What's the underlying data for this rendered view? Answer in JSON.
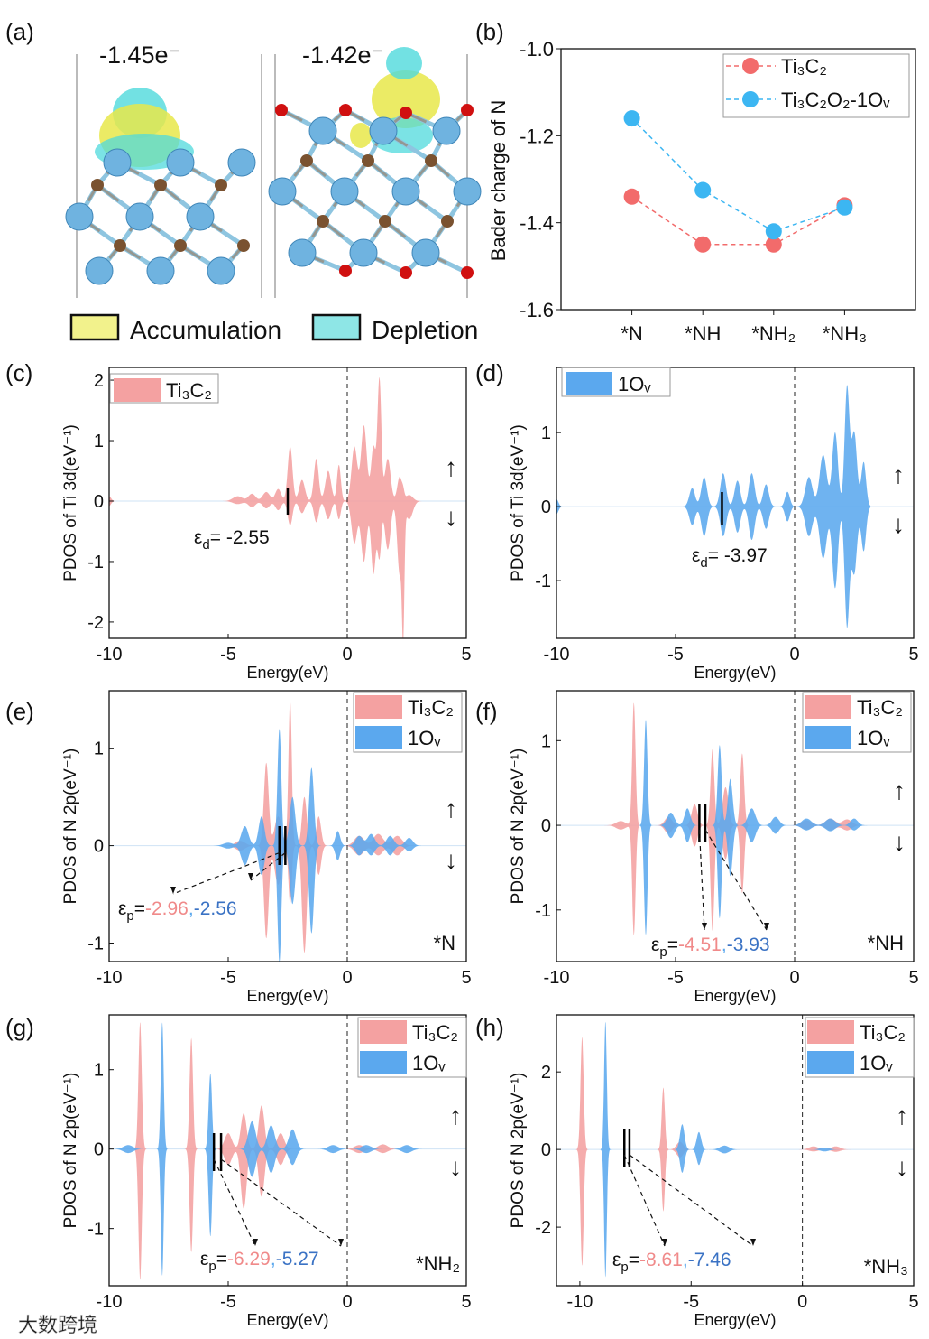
{
  "panel_a": {
    "panel_label": "(a)",
    "charge_left": "-1.45e⁻",
    "charge_right": "-1.42e⁻",
    "legend": [
      {
        "label": "Accumulation",
        "color": "#f2f28c"
      },
      {
        "label": "Depletion",
        "color": "#8ee6e6"
      }
    ]
  },
  "watermark": "大数跨境",
  "chart_data": [
    {
      "id": "b",
      "panel_label": "(b)",
      "type": "line",
      "ylabel": "Bader charge of N",
      "categories": [
        "*N",
        "*NH",
        "*NH₂",
        "*NH₃"
      ],
      "xlim": [
        0,
        5
      ],
      "ylim": [
        -1.6,
        -1.0
      ],
      "ytick_labels": [
        "-1.0",
        "-1.2",
        "-1.4",
        "-1.6"
      ],
      "legend_position": "top-right",
      "series": [
        {
          "name": "Ti₃C₂",
          "color": "#f26b6b",
          "values": [
            -1.34,
            -1.45,
            -1.45,
            -1.36
          ]
        },
        {
          "name": "Ti₃C₂O₂-1Oᵥ",
          "color": "#3cb6f2",
          "values": [
            -1.16,
            -1.325,
            -1.42,
            -1.365
          ]
        }
      ]
    },
    {
      "id": "c",
      "panel_label": "(c)",
      "type": "area",
      "xlabel": "Energy(eV)",
      "ylabel": "PDOS of Ti 3d(eV⁻¹)",
      "xlim": [
        -10,
        5
      ],
      "xtick_labels": [
        "-10",
        "-5",
        "0",
        "5"
      ],
      "ylim": [
        -2.27,
        2.21
      ],
      "ytick_labels": [
        "-2",
        "-1",
        "0",
        "1",
        "2"
      ],
      "fermi_level": 0,
      "spin_up": "↑",
      "spin_down": "↓",
      "adsorbate": "",
      "series": [
        {
          "name": "Ti₃C₂",
          "color": "#f4a1a1",
          "peaks": [
            [
              -10,
              0.08,
              0.08,
              0.08
            ],
            [
              -4.6,
              0.08,
              0.05,
              0.2
            ],
            [
              -4.0,
              0.12,
              0.1,
              0.15
            ],
            [
              -3.4,
              0.15,
              0.12,
              0.15
            ],
            [
              -2.9,
              0.2,
              0.15,
              0.12
            ],
            [
              -2.4,
              0.9,
              0.4,
              0.1
            ],
            [
              -1.9,
              0.35,
              0.2,
              0.12
            ],
            [
              -1.3,
              0.7,
              0.35,
              0.1
            ],
            [
              -0.8,
              0.5,
              0.3,
              0.12
            ],
            [
              -0.35,
              0.6,
              0.3,
              0.08
            ],
            [
              0.3,
              0.9,
              0.7,
              0.12
            ],
            [
              0.7,
              1.25,
              1.0,
              0.12
            ],
            [
              1.1,
              0.9,
              1.2,
              0.1
            ],
            [
              1.35,
              2.0,
              0.9,
              0.08
            ],
            [
              1.7,
              0.7,
              0.8,
              0.12
            ],
            [
              2.2,
              0.4,
              1.2,
              0.1
            ],
            [
              2.35,
              0.1,
              1.9,
              0.05
            ],
            [
              2.6,
              0.1,
              0.3,
              0.15
            ]
          ]
        }
      ],
      "descriptor": {
        "symbol": "ε",
        "sub": "d",
        "eq": "= ",
        "sep": ",",
        "values": [
          {
            "text": "-2.55",
            "series": -1
          }
        ],
        "markers": [
          -2.5
        ]
      }
    },
    {
      "id": "d",
      "panel_label": "(d)",
      "type": "area",
      "xlabel": "Energy(eV)",
      "ylabel": "PDOS of Ti 3d(eV⁻¹)",
      "xlim": [
        -10,
        5
      ],
      "xtick_labels": [
        "-10",
        "-5",
        "0",
        "5"
      ],
      "ylim": [
        -1.78,
        1.88
      ],
      "ytick_labels": [
        "-1",
        "0",
        "1"
      ],
      "fermi_level": 0,
      "spin_up": "↑",
      "spin_down": "↓",
      "adsorbate": "",
      "series": [
        {
          "name": "1Oᵥ",
          "color": "#5ba8ee",
          "peaks": [
            [
              -10,
              0.1,
              0.1,
              0.08
            ],
            [
              -4.3,
              0.25,
              0.25,
              0.12
            ],
            [
              -3.8,
              0.4,
              0.4,
              0.12
            ],
            [
              -3.0,
              0.45,
              0.4,
              0.12
            ],
            [
              -2.4,
              0.35,
              0.35,
              0.12
            ],
            [
              -1.8,
              0.45,
              0.45,
              0.12
            ],
            [
              -1.2,
              0.3,
              0.3,
              0.12
            ],
            [
              -0.3,
              0.2,
              0.2,
              0.1
            ],
            [
              0.6,
              0.4,
              0.4,
              0.15
            ],
            [
              1.2,
              0.7,
              0.7,
              0.15
            ],
            [
              1.7,
              1.0,
              1.1,
              0.12
            ],
            [
              2.2,
              1.6,
              1.6,
              0.1
            ],
            [
              2.5,
              1.0,
              0.9,
              0.12
            ],
            [
              2.9,
              0.6,
              0.6,
              0.1
            ]
          ]
        }
      ],
      "descriptor": {
        "symbol": "ε",
        "sub": "d",
        "eq": "= ",
        "sep": ",",
        "values": [
          {
            "text": "-3.97",
            "series": -1
          }
        ],
        "markers": [
          -3.05
        ]
      }
    },
    {
      "id": "e",
      "panel_label": "(e)",
      "type": "area",
      "xlabel": "Energy(eV)",
      "ylabel": "PDOS of N 2p(eV⁻¹)",
      "xlim": [
        -10,
        5
      ],
      "xtick_labels": [
        "-10",
        "-5",
        "0",
        "5"
      ],
      "ylim": [
        -1.19,
        1.59
      ],
      "ytick_labels": [
        "-1",
        "0",
        "1"
      ],
      "fermi_level": 0,
      "spin_up": "↑",
      "spin_down": "↓",
      "adsorbate": "*N",
      "series": [
        {
          "name": "Ti₃C₂",
          "color": "#f4a1a1",
          "peaks": [
            [
              -4.5,
              0.05,
              0.05,
              0.2
            ],
            [
              -3.4,
              0.85,
              0.95,
              0.1
            ],
            [
              -2.9,
              0.3,
              0.4,
              0.15
            ],
            [
              -2.4,
              1.5,
              0.6,
              0.07
            ],
            [
              -1.8,
              0.5,
              1.1,
              0.1
            ],
            [
              -1.2,
              0.3,
              0.3,
              0.1
            ],
            [
              0.5,
              0.1,
              0.1,
              0.2
            ],
            [
              1.3,
              0.12,
              0.1,
              0.2
            ],
            [
              2.1,
              0.1,
              0.1,
              0.2
            ]
          ]
        },
        {
          "name": "1Oᵥ",
          "color": "#5ba8ee",
          "peaks": [
            [
              -5,
              0.03,
              0.03,
              0.2
            ],
            [
              -4.3,
              0.2,
              0.2,
              0.15
            ],
            [
              -3.6,
              0.3,
              0.3,
              0.12
            ],
            [
              -2.85,
              1.2,
              1.2,
              0.08
            ],
            [
              -2.3,
              0.5,
              0.6,
              0.12
            ],
            [
              -1.5,
              0.8,
              0.9,
              0.1
            ],
            [
              -0.4,
              0.15,
              0.15,
              0.1
            ],
            [
              0.5,
              0.1,
              0.1,
              0.15
            ],
            [
              1.0,
              0.12,
              0.1,
              0.15
            ],
            [
              1.8,
              0.1,
              0.1,
              0.15
            ],
            [
              2.6,
              0.08,
              0.06,
              0.15
            ]
          ]
        }
      ],
      "descriptor": {
        "symbol": "ε",
        "sub": "p",
        "eq": "=",
        "sep": ",",
        "values": [
          {
            "text": "-2.96",
            "series": 0
          },
          {
            "text": "-2.56",
            "series": 1
          }
        ],
        "markers": [
          -2.85,
          -2.6
        ]
      }
    },
    {
      "id": "f",
      "panel_label": "(f)",
      "type": "area",
      "xlabel": "Energy(eV)",
      "ylabel": "PDOS of N 2p(eV⁻¹)",
      "xlim": [
        -10,
        5
      ],
      "xtick_labels": [
        "-10",
        "-5",
        "0",
        "5"
      ],
      "ylim": [
        -1.61,
        1.59
      ],
      "ytick_labels": [
        "-1",
        "0",
        "1"
      ],
      "fermi_level": 0,
      "spin_up": "↑",
      "spin_down": "↓",
      "adsorbate": "*NH",
      "series": [
        {
          "name": "Ti₃C₂",
          "color": "#f4a1a1",
          "peaks": [
            [
              -7.3,
              0.05,
              0.05,
              0.2
            ],
            [
              -6.75,
              1.45,
              1.3,
              0.07
            ],
            [
              -5.3,
              0.1,
              0.1,
              0.15
            ],
            [
              -4.2,
              0.25,
              0.25,
              0.12
            ],
            [
              -3.45,
              0.9,
              1.25,
              0.08
            ],
            [
              -2.9,
              0.45,
              0.4,
              0.12
            ],
            [
              -2.2,
              0.85,
              0.8,
              0.08
            ],
            [
              0.5,
              0.06,
              0.05,
              0.2
            ],
            [
              1.5,
              0.08,
              0.06,
              0.2
            ],
            [
              2.2,
              0.07,
              0.06,
              0.2
            ]
          ]
        },
        {
          "name": "1Oᵥ",
          "color": "#5ba8ee",
          "peaks": [
            [
              -6.25,
              1.25,
              1.3,
              0.07
            ],
            [
              -5.2,
              0.15,
              0.15,
              0.15
            ],
            [
              -4.5,
              0.2,
              0.2,
              0.12
            ],
            [
              -3.15,
              0.95,
              1.1,
              0.08
            ],
            [
              -2.7,
              0.55,
              0.6,
              0.1
            ],
            [
              -1.8,
              0.2,
              0.2,
              0.15
            ],
            [
              -0.8,
              0.1,
              0.1,
              0.15
            ],
            [
              0.5,
              0.08,
              0.06,
              0.2
            ],
            [
              1.5,
              0.08,
              0.07,
              0.2
            ],
            [
              2.5,
              0.08,
              0.06,
              0.15
            ]
          ]
        }
      ],
      "descriptor": {
        "symbol": "ε",
        "sub": "p",
        "eq": "=",
        "sep": ",",
        "values": [
          {
            "text": "-4.51",
            "series": 0
          },
          {
            "text": "-3.93",
            "series": 1
          }
        ],
        "markers": [
          -4.0,
          -3.75
        ]
      }
    },
    {
      "id": "g",
      "panel_label": "(g)",
      "type": "area",
      "xlabel": "Energy(eV)",
      "ylabel": "PDOS of N 2p(eV⁻¹)",
      "xlim": [
        -10,
        5
      ],
      "xtick_labels": [
        "-10",
        "-5",
        "0",
        "5"
      ],
      "ylim": [
        -1.72,
        1.69
      ],
      "ytick_labels": [
        "-1",
        "0",
        "1"
      ],
      "fermi_level": 0,
      "spin_up": "↑",
      "spin_down": "↓",
      "adsorbate": "*NH₂",
      "series": [
        {
          "name": "Ti₃C₂",
          "color": "#f4a1a1",
          "peaks": [
            [
              -8.7,
              1.6,
              1.65,
              0.07
            ],
            [
              -6.55,
              1.4,
              1.3,
              0.07
            ],
            [
              -5.0,
              0.2,
              0.2,
              0.15
            ],
            [
              -4.35,
              0.45,
              0.75,
              0.12
            ],
            [
              -3.6,
              0.55,
              0.6,
              0.12
            ],
            [
              -2.8,
              0.2,
              0.2,
              0.15
            ],
            [
              0.5,
              0.05,
              0.05,
              0.2
            ],
            [
              1.5,
              0.06,
              0.05,
              0.2
            ]
          ]
        },
        {
          "name": "1Oᵥ",
          "color": "#5ba8ee",
          "peaks": [
            [
              -9.2,
              0.05,
              0.05,
              0.2
            ],
            [
              -7.77,
              1.6,
              1.6,
              0.06
            ],
            [
              -5.75,
              0.95,
              1.1,
              0.07
            ],
            [
              -4.0,
              0.35,
              0.35,
              0.15
            ],
            [
              -3.2,
              0.3,
              0.3,
              0.15
            ],
            [
              -2.3,
              0.25,
              0.2,
              0.15
            ],
            [
              -0.6,
              0.05,
              0.05,
              0.2
            ],
            [
              0.8,
              0.05,
              0.05,
              0.2
            ],
            [
              2.5,
              0.05,
              0.05,
              0.2
            ]
          ]
        }
      ],
      "descriptor": {
        "symbol": "ε",
        "sub": "p",
        "eq": "=",
        "sep": ",",
        "values": [
          {
            "text": "-6.29",
            "series": 0
          },
          {
            "text": "-5.27",
            "series": 1
          }
        ],
        "markers": [
          -5.6,
          -5.3
        ]
      }
    },
    {
      "id": "h",
      "panel_label": "(h)",
      "type": "area",
      "xlabel": "Energy(eV)",
      "ylabel": "PDOS of N 2p(eV⁻¹)",
      "xlim": [
        -11.05,
        5
      ],
      "xtick_labels": [
        "-10",
        "-5",
        "0",
        "5"
      ],
      "ylim": [
        -3.51,
        3.47
      ],
      "ytick_labels": [
        "-2",
        "0",
        "2"
      ],
      "fermi_level": 0,
      "spin_up": "↑",
      "spin_down": "↓",
      "adsorbate": "*NH₃",
      "series": [
        {
          "name": "Ti₃C₂",
          "color": "#f4a1a1",
          "peaks": [
            [
              -9.9,
              2.9,
              3.0,
              0.07
            ],
            [
              -6.25,
              1.6,
              1.6,
              0.07
            ],
            [
              -5.5,
              0.2,
              0.2,
              0.15
            ],
            [
              0.5,
              0.08,
              0.05,
              0.2
            ],
            [
              1.5,
              0.08,
              0.06,
              0.2
            ]
          ]
        },
        {
          "name": "1Oᵥ",
          "color": "#5ba8ee",
          "peaks": [
            [
              -8.85,
              3.3,
              3.3,
              0.06
            ],
            [
              -5.4,
              0.65,
              0.6,
              0.1
            ],
            [
              -4.65,
              0.45,
              0.4,
              0.1
            ],
            [
              -3.5,
              0.1,
              0.1,
              0.2
            ],
            [
              1.0,
              0.05,
              0.05,
              0.2
            ]
          ]
        }
      ],
      "descriptor": {
        "symbol": "ε",
        "sub": "p",
        "eq": "=",
        "sep": ",",
        "values": [
          {
            "text": "-8.61",
            "series": 0
          },
          {
            "text": "-7.46",
            "series": 1
          }
        ],
        "markers": [
          -8.0,
          -7.77
        ]
      }
    }
  ]
}
